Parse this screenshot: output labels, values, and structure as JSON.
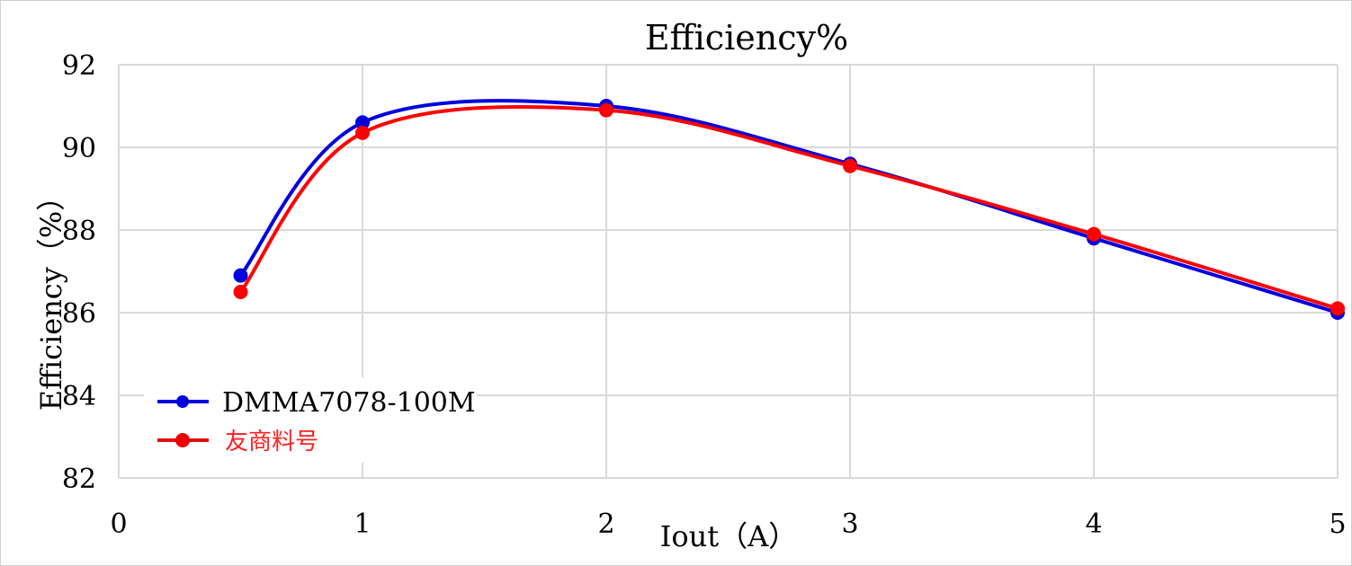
{
  "chart_data": {
    "type": "line",
    "title": "Efficiency%",
    "xlabel": "Iout（A）",
    "ylabel": "Efficiency（%）",
    "xlim": [
      0,
      5
    ],
    "ylim": [
      82,
      92
    ],
    "xticks": [
      0,
      1,
      2,
      3,
      4,
      5
    ],
    "yticks": [
      82,
      84,
      86,
      88,
      90,
      92
    ],
    "grid": true,
    "smooth": true,
    "legend_position": "bottom-left",
    "series": [
      {
        "name": "DMMA7078-100M",
        "color": "#0000dd",
        "x": [
          0.5,
          1,
          2,
          3,
          4,
          5
        ],
        "y": [
          86.9,
          90.6,
          91.0,
          89.6,
          87.8,
          86.0
        ]
      },
      {
        "name": "友商料号",
        "color": "#ff0000",
        "x": [
          0.5,
          1,
          2,
          3,
          4,
          5
        ],
        "y": [
          86.5,
          90.35,
          90.9,
          89.55,
          87.9,
          86.1
        ]
      }
    ]
  }
}
